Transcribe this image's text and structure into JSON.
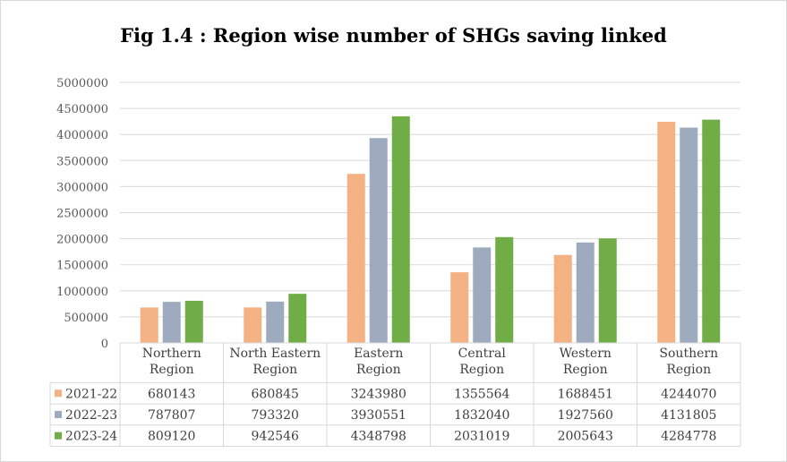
{
  "title": "Fig 1.4 : Region wise number of SHGs saving linked",
  "chart_data": {
    "type": "bar",
    "title": "Fig 1.4 : Region wise number of SHGs saving linked",
    "categories": [
      [
        "Northern",
        "Region"
      ],
      [
        "North Eastern",
        "Region"
      ],
      [
        "Eastern",
        "Region"
      ],
      [
        "Central",
        "Region"
      ],
      [
        "Western",
        "Region"
      ],
      [
        "Southern",
        "Region"
      ]
    ],
    "series": [
      {
        "name": "2021-22",
        "color": "#f4b183",
        "values": [
          680143,
          680845,
          3243980,
          1355564,
          1688451,
          4244070
        ]
      },
      {
        "name": "2022-23",
        "color": "#9eaabd",
        "values": [
          787807,
          793320,
          3930551,
          1832040,
          1927560,
          4131805
        ]
      },
      {
        "name": "2023-24",
        "color": "#70ad47",
        "values": [
          809120,
          942546,
          4348798,
          2031019,
          2005643,
          4284778
        ]
      }
    ],
    "ylim": [
      0,
      5000000
    ],
    "yticks": [
      0,
      500000,
      1000000,
      1500000,
      2000000,
      2500000,
      3000000,
      3500000,
      4000000,
      4500000,
      5000000
    ],
    "grid": true,
    "data_table": true
  }
}
